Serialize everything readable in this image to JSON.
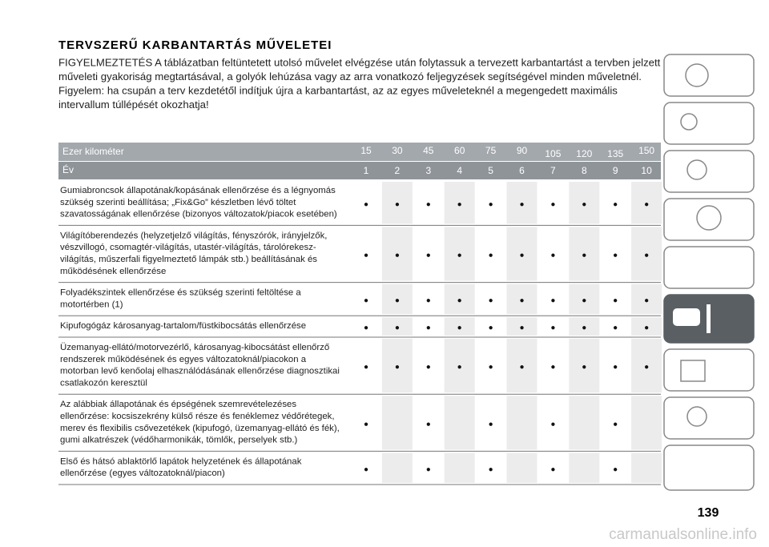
{
  "header": {
    "title": "TERVSZERŰ KARBANTARTÁS MŰVELETEI",
    "paragraph": [
      "FIGYELMEZTETÉS A táblázatban feltüntetett utolsó művelet elvégzése után folytassuk a tervezett karbantartást a tervben jelzett",
      "műveleti gyakoriság megtartásával, a golyók lehúzása vagy az arra vonatkozó feljegyzések segítségével minden műveletnél.",
      "Figyelem: ha csupán a terv kezdetétől indítjuk újra a karbantartást, az az egyes műveleteknél a megengedett maximális",
      "intervallum túllépését okozhatja!"
    ]
  },
  "table": {
    "km_label": "Ezer kilométer",
    "km": [
      15,
      30,
      45,
      60,
      75,
      90,
      105,
      120,
      135,
      150
    ],
    "year_label": "Év",
    "years": [
      1,
      2,
      3,
      4,
      5,
      6,
      7,
      8,
      9,
      10
    ],
    "rows": [
      {
        "text": [
          "Gumiabroncsok állapotának/kopásának ellenőrzése és a légnyomás",
          "szükség szerinti beállítása; „Fix&Go” készletben lévő töltet",
          "szavatosságának ellenőrzése (bizonyos változatok/piacok esetében)"
        ],
        "cells": [
          "●",
          "●",
          "●",
          "●",
          "●",
          "●",
          "●",
          "●",
          "●",
          "●"
        ]
      },
      {
        "text": [
          "Világítóberendezés (helyzetjelző világítás, fényszórók, irányjelzők,",
          "vészvillogó, csomagtér-világítás, utastér-világítás, tárolórekesz-",
          "világítás, műszerfali figyelmeztető lámpák stb.) beállításának és",
          "működésének ellenőrzése"
        ],
        "cells": [
          "●",
          "●",
          "●",
          "●",
          "●",
          "●",
          "●",
          "●",
          "●",
          "●"
        ]
      },
      {
        "text": [
          "Folyadékszintek ellenőrzése és szükség szerinti feltöltése a",
          "motortérben (1)"
        ],
        "cells": [
          "●",
          "●",
          "●",
          "●",
          "●",
          "●",
          "●",
          "●",
          "●",
          "●"
        ]
      },
      {
        "text": [
          "Kipufogógáz károsanyag-tartalom/füstkibocsátás ellenőrzése"
        ],
        "cells": [
          "●",
          "●",
          "●",
          "●",
          "●",
          "●",
          "●",
          "●",
          "●",
          "●"
        ]
      },
      {
        "text": [
          "Üzemanyag-ellátó/motorvezérlő, károsanyag-kibocsátást ellenőrző",
          "rendszerek működésének és egyes változatoknál/piacokon a",
          "motorban levő kenőolaj elhasználódásának ellenőrzése diagnosztikai",
          "csatlakozón keresztül"
        ],
        "cells": [
          "●",
          "●",
          "●",
          "●",
          "●",
          "●",
          "●",
          "●",
          "●",
          "●"
        ]
      },
      {
        "text": [
          "Az alábbiak állapotának és épségének szemrevételezéses",
          "ellenőrzése: kocsiszekrény külső része és fenéklemez védőrétegek,",
          "merev és flexibilis csővezetékek (kipufogó, üzemanyag-ellátó és fék),",
          "gumi alkatrészek (védőharmonikák, tömlők, perselyek stb.)"
        ],
        "cells": [
          "●",
          null,
          "●",
          null,
          "●",
          null,
          "●",
          null,
          "●",
          null
        ]
      },
      {
        "text": [
          "Első és hátsó ablaktörlő lapátok helyzetének és állapotának",
          "ellenőrzése (egyes változatoknál/piacon)"
        ],
        "cells": [
          "●",
          null,
          "●",
          null,
          "●",
          null,
          "●",
          null,
          "●",
          null
        ]
      }
    ]
  },
  "footer": {
    "page": "139",
    "watermark": "carmanualsonline.info"
  }
}
